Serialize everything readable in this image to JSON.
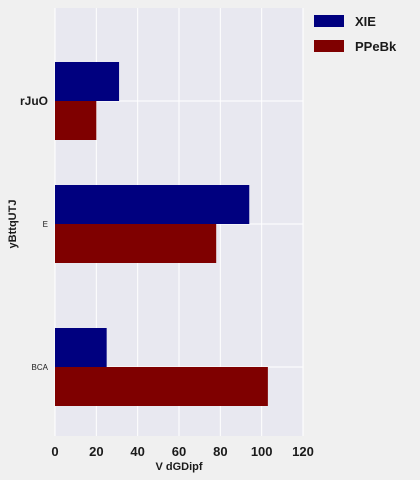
{
  "chart_data": {
    "type": "bar",
    "orientation": "horizontal",
    "categories": [
      "rJuO",
      "E",
      "BCA"
    ],
    "category_label_sizes": [
      12,
      8,
      8
    ],
    "series": [
      {
        "name": "XIE",
        "color": "#00007f",
        "values": [
          31,
          94,
          25
        ]
      },
      {
        "name": "PPeBk",
        "color": "#7f0000",
        "values": [
          20,
          78,
          103
        ]
      }
    ],
    "xlabel": "V dGDipf",
    "ylabel": "yBttqUTJ",
    "xlim": [
      0,
      120
    ],
    "xticks": [
      0,
      20,
      40,
      60,
      80,
      100,
      120
    ],
    "grid": true,
    "legend": "top-right"
  }
}
